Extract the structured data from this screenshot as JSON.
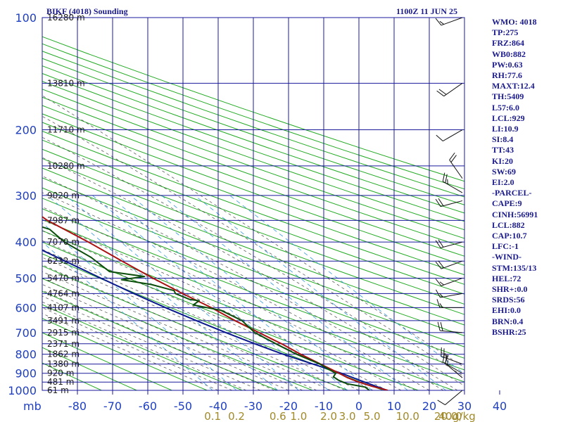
{
  "title": "BIKF (4018) Sounding",
  "datetime": "1100Z 11 JUN 25",
  "pressure_unit": "mb",
  "mixing_unit": "g/kg",
  "indices": [
    "WMO: 4018",
    "TP:275",
    "FRZ:864",
    "WB0:882",
    "PW:0.63",
    "RH:77.6",
    "MAXT:12.4",
    "TH:5409",
    "L57:6.0",
    "LCL:929",
    "LI:10.9",
    "SI:8.4",
    "TT:43",
    "KI:20",
    "SW:69",
    "EI:2.0",
    "-PARCEL-",
    "CAPE:9",
    "CINH:56991",
    "LCL:882",
    "CAP:10.7",
    "LFC:-1",
    "-WIND-",
    "STM:135/13",
    "HEL:72",
    "SHR+:0.0",
    "SRDS:56",
    "EHI:0.0",
    "BRN:0.4",
    "BSHR:25"
  ],
  "colors": {
    "grid": "#1a1a9c",
    "dry_adiabat": "#22aa22",
    "moist_adiabat": "#333333",
    "mixing_ratio": "#3399dd",
    "temperature": "#aa1111",
    "dewpoint": "#0b4d0b",
    "parcel": "#0a1a8c",
    "wind": "#111111"
  },
  "chart_data": {
    "type": "skew-t",
    "pressure_levels": [
      100,
      200,
      300,
      400,
      500,
      600,
      700,
      800,
      900,
      1000
    ],
    "pressure_tick_labels": [
      "100",
      "200",
      "300",
      "400",
      "500",
      "600",
      "700",
      "800",
      "900",
      "1000"
    ],
    "height_labels": [
      {
        "p": 100,
        "label": "16280 m"
      },
      {
        "p": 150,
        "label": "13810 m"
      },
      {
        "p": 200,
        "label": "11710 m"
      },
      {
        "p": 250,
        "label": "10280 m"
      },
      {
        "p": 300,
        "label": "9020 m"
      },
      {
        "p": 350,
        "label": "7987 m"
      },
      {
        "p": 400,
        "label": "7070 m"
      },
      {
        "p": 450,
        "label": "6232 m"
      },
      {
        "p": 500,
        "label": "5470 m"
      },
      {
        "p": 550,
        "label": "4764 m"
      },
      {
        "p": 600,
        "label": "4107 m"
      },
      {
        "p": 650,
        "label": "3491 m"
      },
      {
        "p": 700,
        "label": "2915 m"
      },
      {
        "p": 750,
        "label": "2371 m"
      },
      {
        "p": 800,
        "label": "1862 m"
      },
      {
        "p": 850,
        "label": "1380 m"
      },
      {
        "p": 900,
        "label": "920 m"
      },
      {
        "p": 950,
        "label": "481 m"
      },
      {
        "p": 1000,
        "label": "61 m"
      }
    ],
    "temperature_ticks": [
      -80,
      -70,
      -60,
      -50,
      -40,
      -30,
      -20,
      -10,
      0,
      10,
      20,
      30,
      40
    ],
    "temperature_tick_labels": [
      "-80",
      "-70",
      "-60",
      "-50",
      "-40",
      "-30",
      "-20",
      "-10",
      "0",
      "10",
      "20",
      "30",
      "40"
    ],
    "mixing_ratio_ticks": [
      {
        "label": "0.1",
        "x": 0.1
      },
      {
        "label": "0.2",
        "x": 0.2
      },
      {
        "label": "0.6",
        "x": 0.6
      },
      {
        "label": "1.0",
        "x": 1.0
      },
      {
        "label": "2.0",
        "x": 2.0
      },
      {
        "label": "3.0",
        "x": 3.0
      },
      {
        "label": "5.0",
        "x": 5.0
      },
      {
        "label": "10.0",
        "x": 10.0
      },
      {
        "label": "20.0",
        "x": 20.0
      },
      {
        "label": "40.0",
        "x": 40.0
      }
    ],
    "temperature_profile": [
      {
        "p": 1000,
        "t": 8.2
      },
      {
        "p": 975,
        "t": 4.8
      },
      {
        "p": 950,
        "t": 2.2
      },
      {
        "p": 925,
        "t": 0.2
      },
      {
        "p": 900,
        "t": -1.0
      },
      {
        "p": 850,
        "t": -3.8
      },
      {
        "p": 800,
        "t": -6.8
      },
      {
        "p": 750,
        "t": -9.4
      },
      {
        "p": 700,
        "t": -12.8
      },
      {
        "p": 650,
        "t": -16.4
      },
      {
        "p": 600,
        "t": -19.6
      },
      {
        "p": 550,
        "t": -24.0
      },
      {
        "p": 500,
        "t": -28.2
      },
      {
        "p": 450,
        "t": -32.4
      },
      {
        "p": 400,
        "t": -36.8
      },
      {
        "p": 350,
        "t": -42.6
      },
      {
        "p": 320,
        "t": -44.6
      },
      {
        "p": 300,
        "t": -45.4
      },
      {
        "p": 280,
        "t": -46.0
      },
      {
        "p": 270,
        "t": -47.2
      },
      {
        "p": 250,
        "t": -47.4
      },
      {
        "p": 220,
        "t": -47.8
      },
      {
        "p": 200,
        "t": -48.0
      },
      {
        "p": 170,
        "t": -48.8
      },
      {
        "p": 150,
        "t": -49.4
      },
      {
        "p": 120,
        "t": -51.4
      },
      {
        "p": 100,
        "t": -52.2
      }
    ],
    "dewpoint_profile": [
      {
        "p": 1000,
        "td": 3.0
      },
      {
        "p": 980,
        "td": 2.6
      },
      {
        "p": 960,
        "td": -1.6
      },
      {
        "p": 940,
        "td": -3.0
      },
      {
        "p": 920,
        "td": -3.6
      },
      {
        "p": 900,
        "td": -2.0
      },
      {
        "p": 850,
        "td": -4.0
      },
      {
        "p": 800,
        "td": -8.0
      },
      {
        "p": 750,
        "td": -11.0
      },
      {
        "p": 700,
        "td": -14.0
      },
      {
        "p": 650,
        "td": -14.4
      },
      {
        "p": 610,
        "td": -17.6
      },
      {
        "p": 590,
        "td": -24.0
      },
      {
        "p": 575,
        "td": -21.2
      },
      {
        "p": 570,
        "td": -23.6
      },
      {
        "p": 550,
        "td": -26.0
      },
      {
        "p": 540,
        "td": -25.6
      },
      {
        "p": 520,
        "td": -30.4
      },
      {
        "p": 505,
        "td": -37.6
      },
      {
        "p": 495,
        "td": -30.2
      },
      {
        "p": 480,
        "td": -38.8
      },
      {
        "p": 440,
        "td": -40.2
      },
      {
        "p": 400,
        "td": -43.6
      },
      {
        "p": 370,
        "td": -44.4
      },
      {
        "p": 355,
        "td": -48.6
      },
      {
        "p": 340,
        "td": -52.6
      },
      {
        "p": 320,
        "td": -57.2
      },
      {
        "p": 300,
        "td": -64.6
      },
      {
        "p": 270,
        "td": -63.6
      },
      {
        "p": 250,
        "td": -67.2
      },
      {
        "p": 200,
        "td": -74.0
      },
      {
        "p": 180,
        "td": -76.0
      },
      {
        "p": 160,
        "td": -76.8
      },
      {
        "p": 150,
        "td": -77.6
      }
    ],
    "parcel_profile": [
      {
        "p": 1000,
        "t": 8.0
      },
      {
        "p": 950,
        "t": 3.8
      },
      {
        "p": 900,
        "t": -0.4
      },
      {
        "p": 850,
        "t": -6.0
      },
      {
        "p": 800,
        "t": -11.8
      },
      {
        "p": 750,
        "t": -17.0
      },
      {
        "p": 700,
        "t": -22.2
      },
      {
        "p": 650,
        "t": -27.4
      },
      {
        "p": 600,
        "t": -32.6
      },
      {
        "p": 550,
        "t": -37.8
      },
      {
        "p": 500,
        "t": -43.0
      },
      {
        "p": 450,
        "t": -48.6
      },
      {
        "p": 400,
        "t": -54.8
      },
      {
        "p": 350,
        "t": -61.6
      },
      {
        "p": 300,
        "t": -69.6
      },
      {
        "p": 250,
        "t": -79.0
      },
      {
        "p": 230,
        "t": -83.0
      }
    ],
    "winds": [
      {
        "p": 100,
        "dir": 250,
        "spd": 15
      },
      {
        "p": 150,
        "dir": 235,
        "spd": 20
      },
      {
        "p": 200,
        "dir": 240,
        "spd": 10
      },
      {
        "p": 270,
        "dir": 325,
        "spd": 20
      },
      {
        "p": 295,
        "dir": 300,
        "spd": 25
      },
      {
        "p": 310,
        "dir": 255,
        "spd": 20
      },
      {
        "p": 400,
        "dir": 255,
        "spd": 20
      },
      {
        "p": 450,
        "dir": 250,
        "spd": 20
      },
      {
        "p": 500,
        "dir": 250,
        "spd": 15
      },
      {
        "p": 550,
        "dir": 260,
        "spd": 15
      },
      {
        "p": 600,
        "dir": 270,
        "spd": 15
      },
      {
        "p": 700,
        "dir": 275,
        "spd": 20
      },
      {
        "p": 850,
        "dir": 290,
        "spd": 25
      },
      {
        "p": 900,
        "dir": 300,
        "spd": 20
      },
      {
        "p": 925,
        "dir": 310,
        "spd": 15
      },
      {
        "p": 1000,
        "dir": 230,
        "spd": 10
      }
    ]
  }
}
